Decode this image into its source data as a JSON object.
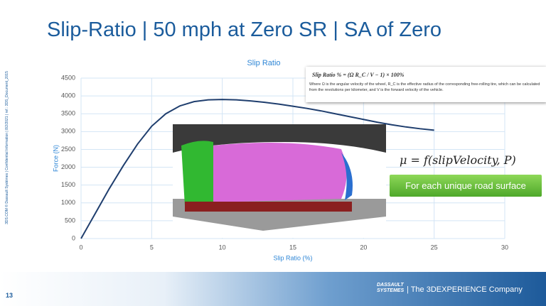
{
  "slide": {
    "title": "Slip-Ratio | 50 mph at Zero SR | SA of Zero",
    "side_note": "3DS.COM © Dassault Systèmes | Confidential Information | 8/2/2021 | ref.: 3DS_Document_2015",
    "page_number": "13",
    "formula": "Slip Ratio % = (Ω R_C / V − 1) × 100%",
    "formula_note": "Where Ω is the angular velocity of the wheel, R_C is the effective radius of the corresponding free-rolling tire, which can be calculated from the revolutions per kilometer, and V is the forward velocity of the vehicle.",
    "equation": "μ = f(slipVelocity, P)",
    "button": "For each unique road surface",
    "logo_brand": "DASSAULT SYSTEMES",
    "logo_tagline": "| The 3DEXPERIENCE Company"
  },
  "chart_data": {
    "type": "line",
    "title": "Slip Ratio",
    "x_label": "Slip Ratio (%)",
    "y_label": "Force (N)",
    "x": [
      0,
      1,
      2,
      3,
      4,
      5,
      6,
      7,
      8,
      9,
      10,
      11,
      12,
      13,
      14,
      15,
      16,
      17,
      18,
      19,
      20,
      21,
      22,
      23,
      24,
      25
    ],
    "series": [
      {
        "name": "Force",
        "color": "#1f3e6e",
        "values": [
          0,
          700,
          1400,
          2050,
          2650,
          3150,
          3500,
          3720,
          3840,
          3890,
          3900,
          3890,
          3860,
          3820,
          3770,
          3710,
          3650,
          3580,
          3500,
          3420,
          3340,
          3260,
          3190,
          3130,
          3080,
          3040
        ]
      }
    ],
    "xlim": [
      0,
      30
    ],
    "ylim": [
      0,
      4500
    ],
    "xticks": [
      0,
      5,
      10,
      15,
      20,
      25,
      30
    ],
    "yticks": [
      0,
      500,
      1000,
      1500,
      2000,
      2500,
      3000,
      3500,
      4000,
      4500
    ],
    "grid": true
  }
}
